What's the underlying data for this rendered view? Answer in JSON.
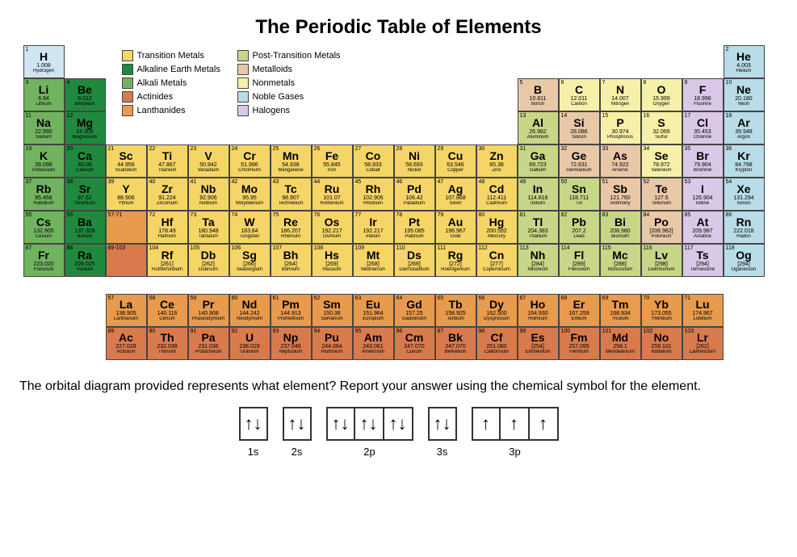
{
  "title": "The Periodic Table of Elements",
  "cell_size": {
    "w": 51,
    "h": 41
  },
  "fblock_offset": {
    "col_x_start": 2,
    "row_y_start": 8
  },
  "categories": {
    "alkali": "#71b35f",
    "alkaline": "#1f8a3e",
    "transition": "#f5d565",
    "posttrans": "#c7d787",
    "metalloid": "#e9c8a8",
    "nonmetal": "#f7f0a8",
    "halogen": "#d9c8e8",
    "noble": "#b8dce8",
    "lanthanide": "#e89a4d",
    "actinide": "#d97a4d",
    "hydrogen": "#cfe6f2"
  },
  "legend_left": [
    {
      "cat": "transition",
      "label": "Transition Metals"
    },
    {
      "cat": "alkaline",
      "label": "Alkaline Earth Metals"
    },
    {
      "cat": "alkali",
      "label": "Alkali Metals"
    },
    {
      "cat": "actinide",
      "label": "Actinides"
    },
    {
      "cat": "lanthanide",
      "label": "Lanthanides"
    }
  ],
  "legend_right": [
    {
      "cat": "posttrans",
      "label": "Post-Transition Metals"
    },
    {
      "cat": "metalloid",
      "label": "Metalloids"
    },
    {
      "cat": "nonmetal",
      "label": "Nonmetals"
    },
    {
      "cat": "noble",
      "label": "Noble Gases"
    },
    {
      "cat": "halogen",
      "label": "Halogens"
    }
  ],
  "elements": [
    {
      "z": 1,
      "s": "H",
      "n": "Hydrogen",
      "m": "1.008",
      "c": "hydrogen",
      "col": 1,
      "row": 1
    },
    {
      "z": 2,
      "s": "He",
      "n": "Helium",
      "m": "4.003",
      "c": "noble",
      "col": 18,
      "row": 1
    },
    {
      "z": 3,
      "s": "Li",
      "n": "Lithium",
      "m": "6.94",
      "c": "alkali",
      "col": 1,
      "row": 2
    },
    {
      "z": 4,
      "s": "Be",
      "n": "Beryllium",
      "m": "9.012",
      "c": "alkaline",
      "col": 2,
      "row": 2
    },
    {
      "z": 5,
      "s": "B",
      "n": "Boron",
      "m": "10.811",
      "c": "metalloid",
      "col": 13,
      "row": 2
    },
    {
      "z": 6,
      "s": "C",
      "n": "Carbon",
      "m": "12.011",
      "c": "nonmetal",
      "col": 14,
      "row": 2
    },
    {
      "z": 7,
      "s": "N",
      "n": "Nitrogen",
      "m": "14.007",
      "c": "nonmetal",
      "col": 15,
      "row": 2
    },
    {
      "z": 8,
      "s": "O",
      "n": "Oxygen",
      "m": "15.999",
      "c": "nonmetal",
      "col": 16,
      "row": 2
    },
    {
      "z": 9,
      "s": "F",
      "n": "Fluorine",
      "m": "18.998",
      "c": "halogen",
      "col": 17,
      "row": 2
    },
    {
      "z": 10,
      "s": "Ne",
      "n": "Neon",
      "m": "20.180",
      "c": "noble",
      "col": 18,
      "row": 2
    },
    {
      "z": 11,
      "s": "Na",
      "n": "Sodium",
      "m": "22.990",
      "c": "alkali",
      "col": 1,
      "row": 3
    },
    {
      "z": 12,
      "s": "Mg",
      "n": "Magnesium",
      "m": "24.305",
      "c": "alkaline",
      "col": 2,
      "row": 3
    },
    {
      "z": 13,
      "s": "Al",
      "n": "Aluminum",
      "m": "26.982",
      "c": "posttrans",
      "col": 13,
      "row": 3
    },
    {
      "z": 14,
      "s": "Si",
      "n": "Silicon",
      "m": "28.086",
      "c": "metalloid",
      "col": 14,
      "row": 3
    },
    {
      "z": 15,
      "s": "P",
      "n": "Phosphorus",
      "m": "30.974",
      "c": "nonmetal",
      "col": 15,
      "row": 3
    },
    {
      "z": 16,
      "s": "S",
      "n": "Sulfur",
      "m": "32.066",
      "c": "nonmetal",
      "col": 16,
      "row": 3
    },
    {
      "z": 17,
      "s": "Cl",
      "n": "Chlorine",
      "m": "35.453",
      "c": "halogen",
      "col": 17,
      "row": 3
    },
    {
      "z": 18,
      "s": "Ar",
      "n": "Argon",
      "m": "39.948",
      "c": "noble",
      "col": 18,
      "row": 3
    },
    {
      "z": 19,
      "s": "K",
      "n": "Potassium",
      "m": "39.098",
      "c": "alkali",
      "col": 1,
      "row": 4
    },
    {
      "z": 20,
      "s": "Ca",
      "n": "Calcium",
      "m": "40.08",
      "c": "alkaline",
      "col": 2,
      "row": 4
    },
    {
      "z": 21,
      "s": "Sc",
      "n": "Scandium",
      "m": "44.956",
      "c": "transition",
      "col": 3,
      "row": 4
    },
    {
      "z": 22,
      "s": "Ti",
      "n": "Titanium",
      "m": "47.867",
      "c": "transition",
      "col": 4,
      "row": 4
    },
    {
      "z": 23,
      "s": "V",
      "n": "Vanadium",
      "m": "50.942",
      "c": "transition",
      "col": 5,
      "row": 4
    },
    {
      "z": 24,
      "s": "Cr",
      "n": "Chromium",
      "m": "51.996",
      "c": "transition",
      "col": 6,
      "row": 4
    },
    {
      "z": 25,
      "s": "Mn",
      "n": "Manganese",
      "m": "54.938",
      "c": "transition",
      "col": 7,
      "row": 4
    },
    {
      "z": 26,
      "s": "Fe",
      "n": "Iron",
      "m": "55.845",
      "c": "transition",
      "col": 8,
      "row": 4
    },
    {
      "z": 27,
      "s": "Co",
      "n": "Cobalt",
      "m": "58.933",
      "c": "transition",
      "col": 9,
      "row": 4
    },
    {
      "z": 28,
      "s": "Ni",
      "n": "Nickel",
      "m": "58.693",
      "c": "transition",
      "col": 10,
      "row": 4
    },
    {
      "z": 29,
      "s": "Cu",
      "n": "Copper",
      "m": "63.546",
      "c": "transition",
      "col": 11,
      "row": 4
    },
    {
      "z": 30,
      "s": "Zn",
      "n": "Zinc",
      "m": "65.38",
      "c": "transition",
      "col": 12,
      "row": 4
    },
    {
      "z": 31,
      "s": "Ga",
      "n": "Gallium",
      "m": "69.723",
      "c": "posttrans",
      "col": 13,
      "row": 4
    },
    {
      "z": 32,
      "s": "Ge",
      "n": "Germanium",
      "m": "72.631",
      "c": "metalloid",
      "col": 14,
      "row": 4
    },
    {
      "z": 33,
      "s": "As",
      "n": "Arsenic",
      "m": "74.922",
      "c": "metalloid",
      "col": 15,
      "row": 4
    },
    {
      "z": 34,
      "s": "Se",
      "n": "Selenium",
      "m": "78.972",
      "c": "nonmetal",
      "col": 16,
      "row": 4
    },
    {
      "z": 35,
      "s": "Br",
      "n": "Bromine",
      "m": "79.904",
      "c": "halogen",
      "col": 17,
      "row": 4
    },
    {
      "z": 36,
      "s": "Kr",
      "n": "Krypton",
      "m": "84.798",
      "c": "noble",
      "col": 18,
      "row": 4
    },
    {
      "z": 37,
      "s": "Rb",
      "n": "Rubidium",
      "m": "85.468",
      "c": "alkali",
      "col": 1,
      "row": 5
    },
    {
      "z": 38,
      "s": "Sr",
      "n": "Strontium",
      "m": "87.62",
      "c": "alkaline",
      "col": 2,
      "row": 5
    },
    {
      "z": 39,
      "s": "Y",
      "n": "Yttrium",
      "m": "88.906",
      "c": "transition",
      "col": 3,
      "row": 5
    },
    {
      "z": 40,
      "s": "Zr",
      "n": "Zirconium",
      "m": "91.224",
      "c": "transition",
      "col": 4,
      "row": 5
    },
    {
      "z": 41,
      "s": "Nb",
      "n": "Niobium",
      "m": "92.906",
      "c": "transition",
      "col": 5,
      "row": 5
    },
    {
      "z": 42,
      "s": "Mo",
      "n": "Molybdenum",
      "m": "95.95",
      "c": "transition",
      "col": 6,
      "row": 5
    },
    {
      "z": 43,
      "s": "Tc",
      "n": "Technetium",
      "m": "98.907",
      "c": "transition",
      "col": 7,
      "row": 5
    },
    {
      "z": 44,
      "s": "Ru",
      "n": "Ruthenium",
      "m": "101.07",
      "c": "transition",
      "col": 8,
      "row": 5
    },
    {
      "z": 45,
      "s": "Rh",
      "n": "Rhodium",
      "m": "102.906",
      "c": "transition",
      "col": 9,
      "row": 5
    },
    {
      "z": 46,
      "s": "Pd",
      "n": "Palladium",
      "m": "106.42",
      "c": "transition",
      "col": 10,
      "row": 5
    },
    {
      "z": 47,
      "s": "Ag",
      "n": "Silver",
      "m": "107.868",
      "c": "transition",
      "col": 11,
      "row": 5
    },
    {
      "z": 48,
      "s": "Cd",
      "n": "Cadmium",
      "m": "112.411",
      "c": "transition",
      "col": 12,
      "row": 5
    },
    {
      "z": 49,
      "s": "In",
      "n": "Indium",
      "m": "114.818",
      "c": "posttrans",
      "col": 13,
      "row": 5
    },
    {
      "z": 50,
      "s": "Sn",
      "n": "Tin",
      "m": "118.711",
      "c": "posttrans",
      "col": 14,
      "row": 5
    },
    {
      "z": 51,
      "s": "Sb",
      "n": "Antimony",
      "m": "121.760",
      "c": "metalloid",
      "col": 15,
      "row": 5
    },
    {
      "z": 52,
      "s": "Te",
      "n": "Tellurium",
      "m": "127.6",
      "c": "metalloid",
      "col": 16,
      "row": 5
    },
    {
      "z": 53,
      "s": "I",
      "n": "Iodine",
      "m": "126.904",
      "c": "halogen",
      "col": 17,
      "row": 5
    },
    {
      "z": 54,
      "s": "Xe",
      "n": "Xenon",
      "m": "131.294",
      "c": "noble",
      "col": 18,
      "row": 5
    },
    {
      "z": 55,
      "s": "Cs",
      "n": "Cesium",
      "m": "132.905",
      "c": "alkali",
      "col": 1,
      "row": 6
    },
    {
      "z": 56,
      "s": "Ba",
      "n": "Barium",
      "m": "137.328",
      "c": "alkaline",
      "col": 2,
      "row": 6
    },
    {
      "z": "57-71",
      "s": "",
      "n": "",
      "m": "",
      "c": "lanthanide",
      "col": 3,
      "row": 6,
      "placeholder": true
    },
    {
      "z": 72,
      "s": "Hf",
      "n": "Hafnium",
      "m": "178.49",
      "c": "transition",
      "col": 4,
      "row": 6
    },
    {
      "z": 73,
      "s": "Ta",
      "n": "Tantalum",
      "m": "180.948",
      "c": "transition",
      "col": 5,
      "row": 6
    },
    {
      "z": 74,
      "s": "W",
      "n": "Tungsten",
      "m": "183.84",
      "c": "transition",
      "col": 6,
      "row": 6
    },
    {
      "z": 75,
      "s": "Re",
      "n": "Rhenium",
      "m": "186.207",
      "c": "transition",
      "col": 7,
      "row": 6
    },
    {
      "z": 76,
      "s": "Os",
      "n": "Osmium",
      "m": "192.217",
      "c": "transition",
      "col": 8,
      "row": 6
    },
    {
      "z": 77,
      "s": "Ir",
      "n": "Iridium",
      "m": "192.217",
      "c": "transition",
      "col": 9,
      "row": 6
    },
    {
      "z": 78,
      "s": "Pt",
      "n": "Platinum",
      "m": "195.085",
      "c": "transition",
      "col": 10,
      "row": 6
    },
    {
      "z": 79,
      "s": "Au",
      "n": "Gold",
      "m": "196.967",
      "c": "transition",
      "col": 11,
      "row": 6
    },
    {
      "z": 80,
      "s": "Hg",
      "n": "Mercury",
      "m": "200.592",
      "c": "transition",
      "col": 12,
      "row": 6
    },
    {
      "z": 81,
      "s": "Tl",
      "n": "Thallium",
      "m": "204.383",
      "c": "posttrans",
      "col": 13,
      "row": 6
    },
    {
      "z": 82,
      "s": "Pb",
      "n": "Lead",
      "m": "207.2",
      "c": "posttrans",
      "col": 14,
      "row": 6
    },
    {
      "z": 83,
      "s": "Bi",
      "n": "Bismuth",
      "m": "208.980",
      "c": "posttrans",
      "col": 15,
      "row": 6
    },
    {
      "z": 84,
      "s": "Po",
      "n": "Polonium",
      "m": "[208.982]",
      "c": "metalloid",
      "col": 16,
      "row": 6
    },
    {
      "z": 85,
      "s": "At",
      "n": "Astatine",
      "m": "209.987",
      "c": "halogen",
      "col": 17,
      "row": 6
    },
    {
      "z": 86,
      "s": "Rn",
      "n": "Radon",
      "m": "222.018",
      "c": "noble",
      "col": 18,
      "row": 6
    },
    {
      "z": 87,
      "s": "Fr",
      "n": "Francium",
      "m": "223.020",
      "c": "alkali",
      "col": 1,
      "row": 7
    },
    {
      "z": 88,
      "s": "Ra",
      "n": "Radium",
      "m": "226.025",
      "c": "alkaline",
      "col": 2,
      "row": 7
    },
    {
      "z": "89-103",
      "s": "",
      "n": "",
      "m": "",
      "c": "actinide",
      "col": 3,
      "row": 7,
      "placeholder": true
    },
    {
      "z": 104,
      "s": "Rf",
      "n": "Rutherfordium",
      "m": "[261]",
      "c": "transition",
      "col": 4,
      "row": 7
    },
    {
      "z": 105,
      "s": "Db",
      "n": "Dubnium",
      "m": "[262]",
      "c": "transition",
      "col": 5,
      "row": 7
    },
    {
      "z": 106,
      "s": "Sg",
      "n": "Seaborgium",
      "m": "[266]",
      "c": "transition",
      "col": 6,
      "row": 7
    },
    {
      "z": 107,
      "s": "Bh",
      "n": "Bohrium",
      "m": "[264]",
      "c": "transition",
      "col": 7,
      "row": 7
    },
    {
      "z": 108,
      "s": "Hs",
      "n": "Hassium",
      "m": "[269]",
      "c": "transition",
      "col": 8,
      "row": 7
    },
    {
      "z": 109,
      "s": "Mt",
      "n": "Meitnerium",
      "m": "[268]",
      "c": "transition",
      "col": 9,
      "row": 7
    },
    {
      "z": 110,
      "s": "Ds",
      "n": "Darmstadtium",
      "m": "[269]",
      "c": "transition",
      "col": 10,
      "row": 7
    },
    {
      "z": 111,
      "s": "Rg",
      "n": "Roentgenium",
      "m": "[272]",
      "c": "transition",
      "col": 11,
      "row": 7
    },
    {
      "z": 112,
      "s": "Cn",
      "n": "Copernicium",
      "m": "[277]",
      "c": "transition",
      "col": 12,
      "row": 7
    },
    {
      "z": 113,
      "s": "Nh",
      "n": "Nihonium",
      "m": "[284]",
      "c": "posttrans",
      "col": 13,
      "row": 7
    },
    {
      "z": 114,
      "s": "Fl",
      "n": "Flerovium",
      "m": "[289]",
      "c": "posttrans",
      "col": 14,
      "row": 7
    },
    {
      "z": 115,
      "s": "Mc",
      "n": "Moscovium",
      "m": "[288]",
      "c": "posttrans",
      "col": 15,
      "row": 7
    },
    {
      "z": 116,
      "s": "Lv",
      "n": "Livermorium",
      "m": "[298]",
      "c": "posttrans",
      "col": 16,
      "row": 7
    },
    {
      "z": 117,
      "s": "Ts",
      "n": "Tennessine",
      "m": "[294]",
      "c": "halogen",
      "col": 17,
      "row": 7
    },
    {
      "z": 118,
      "s": "Og",
      "n": "Oganesson",
      "m": "[294]",
      "c": "noble",
      "col": 18,
      "row": 7
    },
    {
      "z": 57,
      "s": "La",
      "n": "Lanthanum",
      "m": "138.905",
      "c": "lanthanide",
      "col": 3,
      "row": 8.5
    },
    {
      "z": 58,
      "s": "Ce",
      "n": "Cerium",
      "m": "140.116",
      "c": "lanthanide",
      "col": 4,
      "row": 8.5
    },
    {
      "z": 59,
      "s": "Pr",
      "n": "Praseodymium",
      "m": "140.908",
      "c": "lanthanide",
      "col": 5,
      "row": 8.5
    },
    {
      "z": 60,
      "s": "Nd",
      "n": "Neodymium",
      "m": "144.242",
      "c": "lanthanide",
      "col": 6,
      "row": 8.5
    },
    {
      "z": 61,
      "s": "Pm",
      "n": "Promethium",
      "m": "144.913",
      "c": "lanthanide",
      "col": 7,
      "row": 8.5
    },
    {
      "z": 62,
      "s": "Sm",
      "n": "Samarium",
      "m": "150.36",
      "c": "lanthanide",
      "col": 8,
      "row": 8.5
    },
    {
      "z": 63,
      "s": "Eu",
      "n": "Europium",
      "m": "151.964",
      "c": "lanthanide",
      "col": 9,
      "row": 8.5
    },
    {
      "z": 64,
      "s": "Gd",
      "n": "Gadolinium",
      "m": "157.25",
      "c": "lanthanide",
      "col": 10,
      "row": 8.5
    },
    {
      "z": 65,
      "s": "Tb",
      "n": "Terbium",
      "m": "158.925",
      "c": "lanthanide",
      "col": 11,
      "row": 8.5
    },
    {
      "z": 66,
      "s": "Dy",
      "n": "Dysprosium",
      "m": "162.500",
      "c": "lanthanide",
      "col": 12,
      "row": 8.5
    },
    {
      "z": 67,
      "s": "Ho",
      "n": "Holmium",
      "m": "164.930",
      "c": "lanthanide",
      "col": 13,
      "row": 8.5
    },
    {
      "z": 68,
      "s": "Er",
      "n": "Erbium",
      "m": "167.259",
      "c": "lanthanide",
      "col": 14,
      "row": 8.5
    },
    {
      "z": 69,
      "s": "Tm",
      "n": "Thulium",
      "m": "168.934",
      "c": "lanthanide",
      "col": 15,
      "row": 8.5
    },
    {
      "z": 70,
      "s": "Yb",
      "n": "Ytterbium",
      "m": "173.055",
      "c": "lanthanide",
      "col": 16,
      "row": 8.5
    },
    {
      "z": 71,
      "s": "Lu",
      "n": "Lutetium",
      "m": "174.967",
      "c": "lanthanide",
      "col": 17,
      "row": 8.5
    },
    {
      "z": 89,
      "s": "Ac",
      "n": "Actinium",
      "m": "227.028",
      "c": "actinide",
      "col": 3,
      "row": 9.5
    },
    {
      "z": 90,
      "s": "Th",
      "n": "Thorium",
      "m": "232.038",
      "c": "actinide",
      "col": 4,
      "row": 9.5
    },
    {
      "z": 91,
      "s": "Pa",
      "n": "Protactinium",
      "m": "231.036",
      "c": "actinide",
      "col": 5,
      "row": 9.5
    },
    {
      "z": 92,
      "s": "U",
      "n": "Uranium",
      "m": "238.029",
      "c": "actinide",
      "col": 6,
      "row": 9.5
    },
    {
      "z": 93,
      "s": "Np",
      "n": "Neptunium",
      "m": "237.048",
      "c": "actinide",
      "col": 7,
      "row": 9.5
    },
    {
      "z": 94,
      "s": "Pu",
      "n": "Plutonium",
      "m": "244.064",
      "c": "actinide",
      "col": 8,
      "row": 9.5
    },
    {
      "z": 95,
      "s": "Am",
      "n": "Americium",
      "m": "243.061",
      "c": "actinide",
      "col": 9,
      "row": 9.5
    },
    {
      "z": 96,
      "s": "Cm",
      "n": "Curium",
      "m": "247.070",
      "c": "actinide",
      "col": 10,
      "row": 9.5
    },
    {
      "z": 97,
      "s": "Bk",
      "n": "Berkelium",
      "m": "247.070",
      "c": "actinide",
      "col": 11,
      "row": 9.5
    },
    {
      "z": 98,
      "s": "Cf",
      "n": "Californium",
      "m": "251.080",
      "c": "actinide",
      "col": 12,
      "row": 9.5
    },
    {
      "z": 99,
      "s": "Es",
      "n": "Einsteinium",
      "m": "[254]",
      "c": "actinide",
      "col": 13,
      "row": 9.5
    },
    {
      "z": 100,
      "s": "Fm",
      "n": "Fermium",
      "m": "257.095",
      "c": "actinide",
      "col": 14,
      "row": 9.5
    },
    {
      "z": 101,
      "s": "Md",
      "n": "Mendelevium",
      "m": "258.1",
      "c": "actinide",
      "col": 15,
      "row": 9.5
    },
    {
      "z": 102,
      "s": "No",
      "n": "Nobelium",
      "m": "259.101",
      "c": "actinide",
      "col": 16,
      "row": 9.5
    },
    {
      "z": 103,
      "s": "Lr",
      "n": "Lawrencium",
      "m": "[262]",
      "c": "actinide",
      "col": 17,
      "row": 9.5
    }
  ],
  "question": "The orbital diagram provided represents what element?  Report your answer using the chemical symbol for the element.",
  "orbital": {
    "glyph_pair": "↑↓",
    "glyph_up": "↑",
    "groups": [
      {
        "label": "1s",
        "boxes": [
          "pair"
        ]
      },
      {
        "label": "2s",
        "boxes": [
          "pair"
        ]
      },
      {
        "label": "2p",
        "boxes": [
          "pair",
          "pair",
          "pair"
        ]
      },
      {
        "label": "3s",
        "boxes": [
          "pair"
        ]
      },
      {
        "label": "3p",
        "boxes": [
          "up",
          "up",
          "up"
        ]
      }
    ]
  }
}
